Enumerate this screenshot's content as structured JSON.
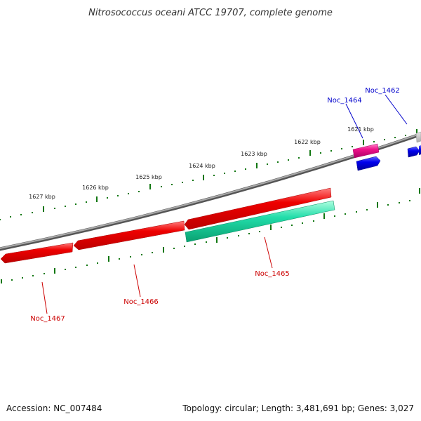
{
  "title": "Nitrosococcus oceani ATCC 19707, complete genome",
  "footer": {
    "accession": "Accession: NC_007484",
    "summary": "Topology: circular; Length: 3,481,691 bp; Genes: 3,027"
  },
  "scale_labels": [
    "1621 kbp",
    "1622 kbp",
    "1623 kbp",
    "1624 kbp",
    "1625 kbp",
    "1626 kbp",
    "1627 kbp"
  ],
  "genes": [
    {
      "id": "Noc_1462",
      "strand": "plus",
      "color": "#0000ee"
    },
    {
      "id": "Noc_1464",
      "strand": "plus",
      "color": "#ee1188"
    },
    {
      "id": "Noc_1465",
      "strand": "minus",
      "color": "#ee0000"
    },
    {
      "id": "Noc_1466",
      "strand": "minus",
      "color": "#ee0000"
    },
    {
      "id": "Noc_1467",
      "strand": "minus",
      "color": "#ee0000"
    }
  ],
  "colors": {
    "backbone": "#7a7a7a",
    "tick": "#117711",
    "plus_red": "#ee0000",
    "minus_green": "#11dd99",
    "pink": "#ee1188",
    "blue": "#0000ee",
    "label_red": "#cc0000",
    "label_blue": "#0000cc"
  }
}
